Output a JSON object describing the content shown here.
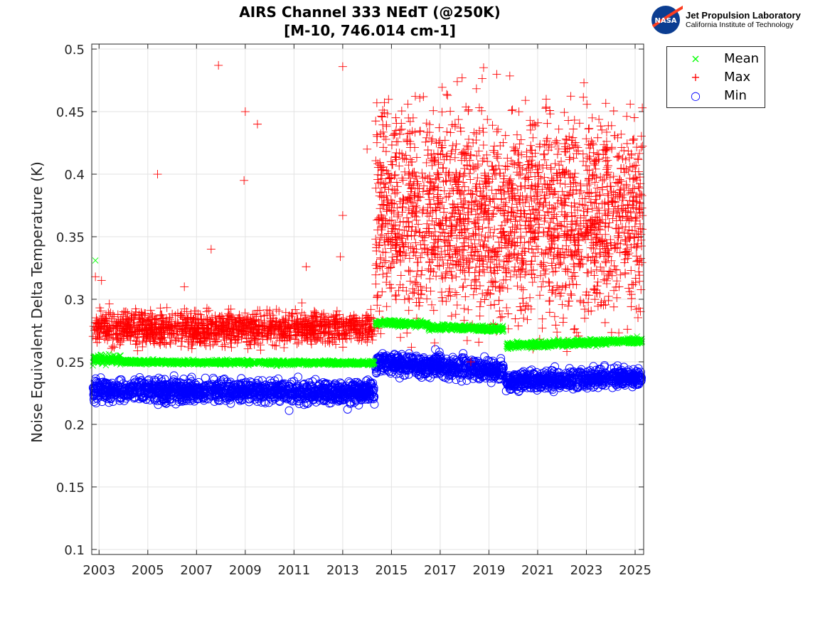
{
  "chart_data": {
    "type": "scatter",
    "title": [
      "AIRS Channel 333 NEdT (@250K)",
      "[M-10, 746.014 cm-1]"
    ],
    "xlabel": "",
    "ylabel": "Noise Equivalent Delta Temperature (K)",
    "xlim": [
      2002.7,
      2025.35
    ],
    "ylim": [
      0.096,
      0.504
    ],
    "xticks": [
      "2003",
      "2005",
      "2007",
      "2009",
      "2011",
      "2013",
      "2015",
      "2017",
      "2019",
      "2021",
      "2023",
      "2025"
    ],
    "yticks": [
      "0.1",
      "0.15",
      "0.2",
      "0.25",
      "0.3",
      "0.35",
      "0.4",
      "0.45",
      "0.5"
    ],
    "grid": true,
    "legend_position": "outside-top-right",
    "series": [
      {
        "name": "Mean",
        "marker": "x",
        "color": "#00ff00",
        "segments": [
          {
            "x": [
              2002.75,
              2003.9
            ],
            "y": [
              0.252,
              0.252
            ],
            "spread": 0.003
          },
          {
            "x": [
              2003.9,
              2014.3
            ],
            "y": [
              0.25,
              0.249
            ],
            "spread": 0.0015
          },
          {
            "x": [
              2014.35,
              2016.5
            ],
            "y": [
              0.281,
              0.28
            ],
            "spread": 0.002
          },
          {
            "x": [
              2016.5,
              2019.6
            ],
            "y": [
              0.278,
              0.276
            ],
            "spread": 0.002
          },
          {
            "x": [
              2019.7,
              2025.3
            ],
            "y": [
              0.263,
              0.267
            ],
            "spread": 0.002
          }
        ],
        "outliers": [
          [
            2002.85,
            0.331
          ],
          [
            2002.75,
            0.247
          ]
        ]
      },
      {
        "name": "Max",
        "marker": "+",
        "color": "#ff0000",
        "segments": [
          {
            "x": [
              2002.75,
              2014.3
            ],
            "y": [
              0.277,
              0.277
            ],
            "spread": 0.011
          },
          {
            "x": [
              2014.35,
              2025.3
            ],
            "y": [
              0.37,
              0.365
            ],
            "spread": 0.055
          }
        ],
        "outliers": [
          [
            2005.4,
            0.4
          ],
          [
            2007.9,
            0.487
          ],
          [
            2007.6,
            0.34
          ],
          [
            2009.0,
            0.45
          ],
          [
            2008.95,
            0.395
          ],
          [
            2009.5,
            0.44
          ],
          [
            2013.0,
            0.486
          ],
          [
            2013.0,
            0.367
          ],
          [
            2002.85,
            0.318
          ],
          [
            2003.1,
            0.315
          ],
          [
            2014.4,
            0.457
          ],
          [
            2017.9,
            0.477
          ],
          [
            2017.7,
            0.474
          ],
          [
            2017.3,
            0.463
          ],
          [
            2022.9,
            0.473
          ],
          [
            2020.5,
            0.459
          ],
          [
            2024.8,
            0.456
          ],
          [
            2014.0,
            0.42
          ],
          [
            2012.9,
            0.334
          ],
          [
            2011.5,
            0.326
          ],
          [
            2006.5,
            0.31
          ]
        ]
      },
      {
        "name": "Min",
        "marker": "o",
        "color": "#0000ff",
        "segments": [
          {
            "x": [
              2002.75,
              2014.3
            ],
            "y": [
              0.227,
              0.226
            ],
            "spread": 0.007
          },
          {
            "x": [
              2014.35,
              2019.6
            ],
            "y": [
              0.249,
              0.243
            ],
            "spread": 0.007
          },
          {
            "x": [
              2019.7,
              2025.3
            ],
            "y": [
              0.234,
              0.238
            ],
            "spread": 0.006
          }
        ],
        "outliers": [
          [
            2010.8,
            0.211
          ],
          [
            2013.2,
            0.212
          ],
          [
            2016.8,
            0.26
          ],
          [
            2014.3,
            0.216
          ]
        ]
      }
    ]
  },
  "logo": {
    "line1": "Jet Propulsion Laboratory",
    "line2": "California Institute of Technology",
    "badge": "NASA"
  }
}
